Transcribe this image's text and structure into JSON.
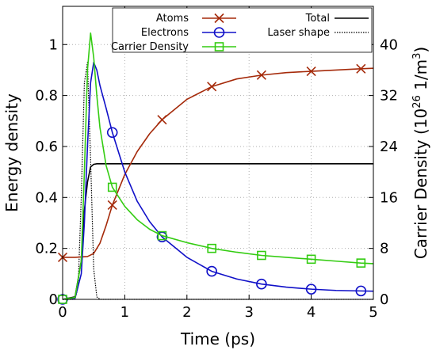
{
  "chart_data": {
    "type": "line",
    "title": "",
    "xlabel": "Time (ps)",
    "ylabel_left": "Energy density",
    "ylabel_right": "Carrier Density (10",
    "ylabel_right_exp": "26",
    "ylabel_right_unit": " 1/m",
    "ylabel_right_unit_exp": "3",
    "ylabel_right_close": ")",
    "xlim": [
      0,
      5
    ],
    "ylim_left": [
      0,
      1.15
    ],
    "ylim_right": [
      0,
      46
    ],
    "x_ticks": [
      "0",
      "1",
      "2",
      "3",
      "4",
      "5"
    ],
    "y_left_ticks": [
      "0",
      "0.2",
      "0.4",
      "0.6",
      "0.8",
      "1"
    ],
    "y_right_ticks": [
      "0",
      "8",
      "16",
      "24",
      "32",
      "40"
    ],
    "legend_position": "top-right",
    "series": [
      {
        "name": "Atoms",
        "axis": "left",
        "color": "#a52a0a",
        "marker": "x",
        "x": [
          0,
          0.2,
          0.4,
          0.5,
          0.6,
          0.7,
          0.8,
          1.0,
          1.2,
          1.4,
          1.6,
          2.0,
          2.4,
          2.8,
          3.2,
          3.6,
          4.0,
          4.4,
          4.8,
          5.0
        ],
        "y": [
          0.165,
          0.165,
          0.168,
          0.18,
          0.22,
          0.29,
          0.37,
          0.49,
          0.58,
          0.65,
          0.705,
          0.785,
          0.835,
          0.865,
          0.88,
          0.89,
          0.895,
          0.9,
          0.905,
          0.907
        ],
        "markers_x": [
          0,
          0.8,
          1.6,
          2.4,
          3.2,
          4.0,
          4.8
        ],
        "markers_y": [
          0.165,
          0.37,
          0.705,
          0.835,
          0.88,
          0.895,
          0.905
        ]
      },
      {
        "name": "Electrons",
        "axis": "left",
        "color": "#1010c8",
        "marker": "circle",
        "x": [
          0,
          0.2,
          0.3,
          0.35,
          0.4,
          0.45,
          0.5,
          0.55,
          0.6,
          0.7,
          0.8,
          1.0,
          1.2,
          1.4,
          1.6,
          2.0,
          2.4,
          2.8,
          3.2,
          3.6,
          4.0,
          4.4,
          4.8,
          5.0
        ],
        "y": [
          0.0,
          0.005,
          0.1,
          0.3,
          0.6,
          0.85,
          0.93,
          0.9,
          0.84,
          0.75,
          0.655,
          0.5,
          0.385,
          0.305,
          0.245,
          0.165,
          0.11,
          0.08,
          0.06,
          0.048,
          0.04,
          0.035,
          0.033,
          0.032
        ],
        "markers_x": [
          0,
          0.8,
          1.6,
          2.4,
          3.2,
          4.0,
          4.8
        ],
        "markers_y": [
          0.0,
          0.655,
          0.245,
          0.11,
          0.06,
          0.04,
          0.033
        ]
      },
      {
        "name": "Carrier Density",
        "axis": "right",
        "color": "#33cc11",
        "marker": "square",
        "x": [
          0,
          0.2,
          0.3,
          0.35,
          0.4,
          0.45,
          0.5,
          0.55,
          0.6,
          0.7,
          0.8,
          1.0,
          1.2,
          1.4,
          1.6,
          2.0,
          2.4,
          2.8,
          3.2,
          3.6,
          4.0,
          4.4,
          4.8,
          5.0
        ],
        "y": [
          0.0,
          0.3,
          6.0,
          20.0,
          36.0,
          41.8,
          38.0,
          32.0,
          27.0,
          21.0,
          17.6,
          14.6,
          12.5,
          11.0,
          10.0,
          8.9,
          8.0,
          7.4,
          6.9,
          6.6,
          6.3,
          6.0,
          5.7,
          5.6
        ],
        "markers_x": [
          0,
          0.8,
          1.6,
          2.4,
          3.2,
          4.0,
          4.8
        ],
        "markers_y": [
          0.0,
          17.6,
          10.0,
          8.0,
          6.9,
          6.3,
          5.7
        ]
      },
      {
        "name": "Total",
        "axis": "left",
        "color": "#000000",
        "marker": "none",
        "x": [
          0,
          0.2,
          0.3,
          0.35,
          0.4,
          0.45,
          0.5,
          0.55,
          1.0,
          2.0,
          3.0,
          4.0,
          5.0
        ],
        "y": [
          0.0,
          0.01,
          0.15,
          0.35,
          0.46,
          0.52,
          0.53,
          0.532,
          0.532,
          0.532,
          0.532,
          0.532,
          0.532
        ]
      },
      {
        "name": "Laser shape",
        "axis": "left",
        "color": "#000000",
        "marker": "none",
        "dash": "1.5,1.5",
        "x": [
          0,
          0.2,
          0.25,
          0.3,
          0.35,
          0.4,
          0.45,
          0.5,
          0.55,
          0.6,
          1.0,
          5.0
        ],
        "y": [
          0.0,
          0.0,
          0.05,
          0.4,
          0.85,
          0.93,
          0.55,
          0.12,
          0.01,
          0.0,
          0.0,
          0.0
        ]
      }
    ]
  }
}
